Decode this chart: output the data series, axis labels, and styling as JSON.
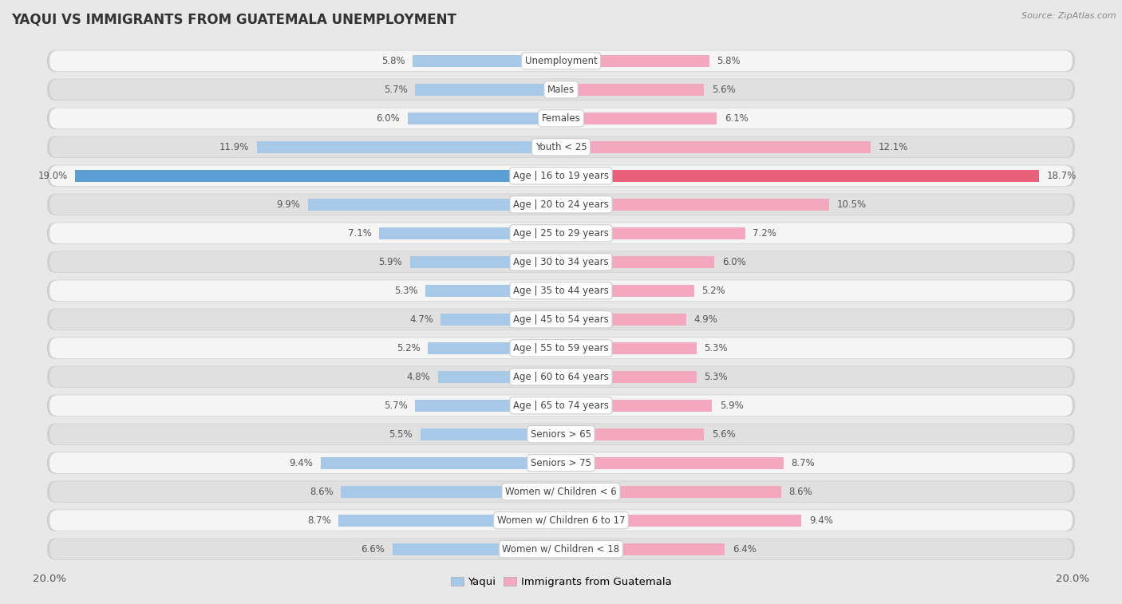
{
  "title": "YAQUI VS IMMIGRANTS FROM GUATEMALA UNEMPLOYMENT",
  "source": "Source: ZipAtlas.com",
  "categories": [
    "Unemployment",
    "Males",
    "Females",
    "Youth < 25",
    "Age | 16 to 19 years",
    "Age | 20 to 24 years",
    "Age | 25 to 29 years",
    "Age | 30 to 34 years",
    "Age | 35 to 44 years",
    "Age | 45 to 54 years",
    "Age | 55 to 59 years",
    "Age | 60 to 64 years",
    "Age | 65 to 74 years",
    "Seniors > 65",
    "Seniors > 75",
    "Women w/ Children < 6",
    "Women w/ Children 6 to 17",
    "Women w/ Children < 18"
  ],
  "yaqui_values": [
    5.8,
    5.7,
    6.0,
    11.9,
    19.0,
    9.9,
    7.1,
    5.9,
    5.3,
    4.7,
    5.2,
    4.8,
    5.7,
    5.5,
    9.4,
    8.6,
    8.7,
    6.6
  ],
  "guatemala_values": [
    5.8,
    5.6,
    6.1,
    12.1,
    18.7,
    10.5,
    7.2,
    6.0,
    5.2,
    4.9,
    5.3,
    5.3,
    5.9,
    5.6,
    8.7,
    8.6,
    9.4,
    6.4
  ],
  "yaqui_color": "#a8c8e8",
  "guatemala_color": "#f4a8c0",
  "yaqui_highlight_color": "#5b9fd4",
  "guatemala_highlight_color": "#e8607a",
  "background_color": "#e8e8e8",
  "row_light_color": "#f5f5f5",
  "row_dark_color": "#e0e0e0",
  "row_border_color": "#d0d0d0",
  "axis_limit": 20.0,
  "legend_yaqui": "Yaqui",
  "legend_guatemala": "Immigrants from Guatemala",
  "label_fontsize": 8.5,
  "title_fontsize": 12,
  "source_fontsize": 8
}
